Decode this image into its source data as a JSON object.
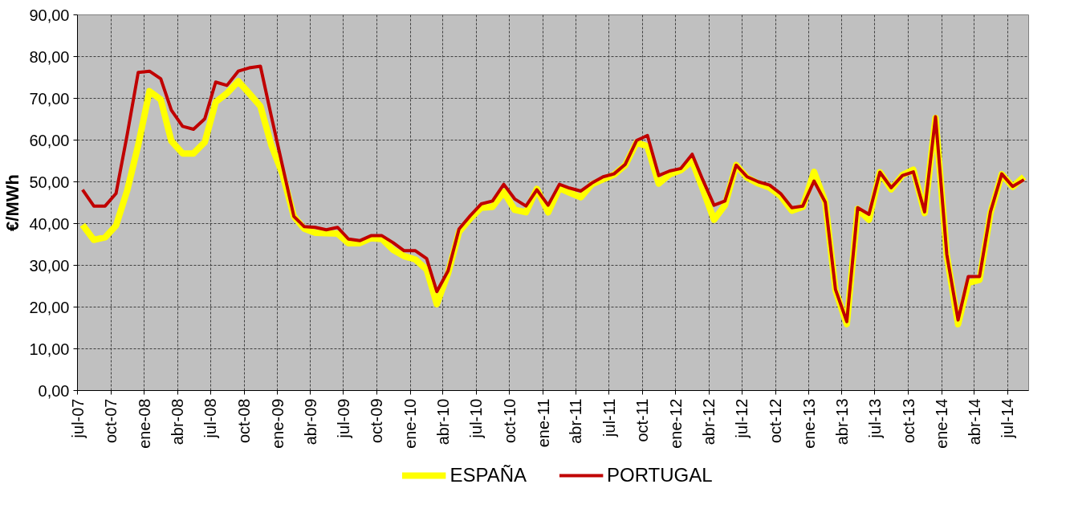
{
  "chart_data": {
    "type": "line",
    "ylabel": "€/MWh",
    "grid": true,
    "legend": "bottom",
    "line_style": "solid",
    "marker": "none",
    "x": [
      "2007-07-15",
      "2007-08-15",
      "2007-09-15",
      "2007-10-15",
      "2007-11-15",
      "2007-12-15",
      "2008-01-15",
      "2008-02-15",
      "2008-03-15",
      "2008-04-15",
      "2008-05-15",
      "2008-06-15",
      "2008-07-15",
      "2008-08-15",
      "2008-09-15",
      "2008-10-15",
      "2008-11-15",
      "2008-12-15",
      "2009-01-15",
      "2009-02-15",
      "2009-03-15",
      "2009-04-15",
      "2009-05-15",
      "2009-06-15",
      "2009-07-15",
      "2009-08-15",
      "2009-09-15",
      "2009-10-15",
      "2009-11-15",
      "2009-12-15",
      "2010-01-15",
      "2010-02-15",
      "2010-03-15",
      "2010-04-15",
      "2010-05-15",
      "2010-06-15",
      "2010-07-15",
      "2010-08-15",
      "2010-09-15",
      "2010-10-15",
      "2010-11-15",
      "2010-12-15",
      "2011-01-15",
      "2011-02-15",
      "2011-03-15",
      "2011-04-15",
      "2011-05-15",
      "2011-06-15",
      "2011-07-15",
      "2011-08-15",
      "2011-09-15",
      "2011-10-15",
      "2011-11-15",
      "2011-12-15",
      "2012-01-15",
      "2012-02-15",
      "2012-03-15",
      "2012-04-15",
      "2012-05-15",
      "2012-06-15",
      "2012-07-15",
      "2012-08-15",
      "2012-09-15",
      "2012-10-15",
      "2012-11-15",
      "2012-12-15",
      "2013-01-15",
      "2013-02-15",
      "2013-03-15",
      "2013-04-15",
      "2013-05-15",
      "2013-06-15",
      "2013-07-15",
      "2013-08-15",
      "2013-09-15",
      "2013-10-15",
      "2013-11-15",
      "2013-12-15",
      "2014-01-15",
      "2014-02-15",
      "2014-03-15",
      "2014-04-15",
      "2014-05-15",
      "2014-06-15",
      "2014-07-15",
      "2014-08-15"
    ],
    "series": [
      {
        "name": "ESPAÑA",
        "color": "#ffff00",
        "values": [
          39.7,
          36.1,
          36.7,
          39.5,
          48,
          58.8,
          71.7,
          69.7,
          59.8,
          56.8,
          56.8,
          59.5,
          69.1,
          71.2,
          74.1,
          71.2,
          68.1,
          58.8,
          51.8,
          41.7,
          38.8,
          37.8,
          37.7,
          37.6,
          35.3,
          35.3,
          36.5,
          36.3,
          33.7,
          32.2,
          31.4,
          29.0,
          20.7,
          28.1,
          38.0,
          41.2,
          43.8,
          44.0,
          47.6,
          43.3,
          42.7,
          48.3,
          42.7,
          48.5,
          47.4,
          46.3,
          49.4,
          50.6,
          51.7,
          54.0,
          59.4,
          58.5,
          49.6,
          51.8,
          52.8,
          55.0,
          48.3,
          40.9,
          44.4,
          54.0,
          51.0,
          49.6,
          48.6,
          46.6,
          43.1,
          44.0,
          52.4,
          45.1,
          24.0,
          15.9,
          43.5,
          40.9,
          52.3,
          48.2,
          51.6,
          52.9,
          42.5,
          65.3,
          32.4,
          15.9,
          25.8,
          26.5,
          42.5,
          51.8,
          48.8,
          51.2
        ]
      },
      {
        "name": "PORTUGAL",
        "color": "#c00000",
        "values": [
          48.1,
          44.2,
          44.2,
          47.2,
          61.4,
          76.2,
          76.5,
          74.7,
          67.2,
          63.3,
          62.6,
          65.1,
          73.9,
          73.1,
          76.5,
          77.3,
          77.7,
          65.7,
          53.7,
          41.7,
          39.3,
          39.1,
          38.5,
          39.1,
          36.3,
          35.9,
          37.1,
          37.1,
          35.4,
          33.5,
          33.5,
          31.6,
          23.7,
          28.7,
          38.7,
          41.9,
          44.7,
          45.4,
          49.4,
          45.9,
          44.2,
          48.1,
          44.4,
          49.4,
          48.5,
          47.8,
          49.7,
          51.2,
          51.9,
          54.2,
          59.9,
          61.1,
          51.5,
          52.6,
          53.2,
          56.6,
          50.5,
          44.4,
          45.4,
          54.0,
          51.2,
          50.0,
          49.2,
          47.2,
          43.8,
          44.2,
          50.2,
          45.1,
          24.2,
          16.5,
          43.8,
          42.2,
          52.3,
          48.6,
          51.5,
          52.4,
          42.8,
          65.6,
          32.6,
          16.9,
          27.3,
          27.3,
          42.8,
          51.9,
          48.9,
          50.5
        ]
      }
    ],
    "xlim": [
      "2007-07-01",
      "2014-08-28"
    ],
    "xticks": [
      {
        "value": "2007-07-01",
        "label": "jul-07"
      },
      {
        "value": "2007-10-01",
        "label": "oct-07"
      },
      {
        "value": "2008-01-01",
        "label": "ene-08"
      },
      {
        "value": "2008-04-01",
        "label": "abr-08"
      },
      {
        "value": "2008-07-01",
        "label": "jul-08"
      },
      {
        "value": "2008-10-01",
        "label": "oct-08"
      },
      {
        "value": "2009-01-01",
        "label": "ene-09"
      },
      {
        "value": "2009-04-01",
        "label": "abr-09"
      },
      {
        "value": "2009-07-01",
        "label": "jul-09"
      },
      {
        "value": "2009-10-01",
        "label": "oct-09"
      },
      {
        "value": "2010-01-01",
        "label": "ene-10"
      },
      {
        "value": "2010-04-01",
        "label": "abr-10"
      },
      {
        "value": "2010-07-01",
        "label": "jul-10"
      },
      {
        "value": "2010-10-01",
        "label": "oct-10"
      },
      {
        "value": "2011-01-01",
        "label": "ene-11"
      },
      {
        "value": "2011-04-01",
        "label": "abr-11"
      },
      {
        "value": "2011-07-01",
        "label": "jul-11"
      },
      {
        "value": "2011-10-01",
        "label": "oct-11"
      },
      {
        "value": "2012-01-01",
        "label": "ene-12"
      },
      {
        "value": "2012-04-01",
        "label": "abr-12"
      },
      {
        "value": "2012-07-01",
        "label": "jul-12"
      },
      {
        "value": "2012-10-01",
        "label": "oct-12"
      },
      {
        "value": "2013-01-01",
        "label": "ene-13"
      },
      {
        "value": "2013-04-01",
        "label": "abr-13"
      },
      {
        "value": "2013-07-01",
        "label": "jul-13"
      },
      {
        "value": "2013-10-01",
        "label": "oct-13"
      },
      {
        "value": "2014-01-01",
        "label": "ene-14"
      },
      {
        "value": "2014-04-01",
        "label": "abr-14"
      },
      {
        "value": "2014-07-01",
        "label": "jul-14"
      }
    ],
    "ylim": [
      0,
      90
    ],
    "yticks": [
      {
        "value": 0,
        "label": "0,00"
      },
      {
        "value": 10,
        "label": "10,00"
      },
      {
        "value": 20,
        "label": "20,00"
      },
      {
        "value": 30,
        "label": "30,00"
      },
      {
        "value": 40,
        "label": "40,00"
      },
      {
        "value": 50,
        "label": "50,00"
      },
      {
        "value": 60,
        "label": "60,00"
      },
      {
        "value": 70,
        "label": "70,00"
      },
      {
        "value": 80,
        "label": "80,00"
      },
      {
        "value": 90,
        "label": "90,00"
      }
    ]
  }
}
